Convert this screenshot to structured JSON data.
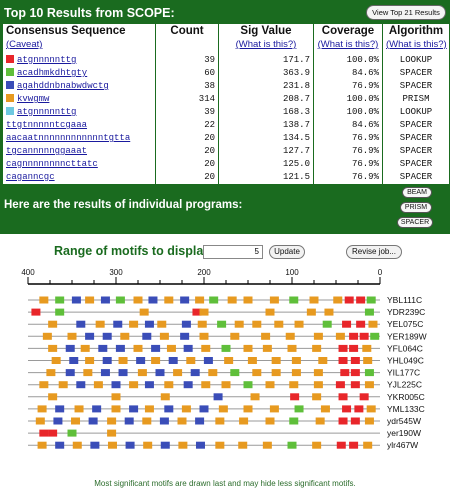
{
  "results": {
    "title": "Top 10 Results from SCOPE:",
    "top21_button": "View Top 21 Results",
    "headers": [
      "Consensus Sequence",
      "Count",
      "Sig Value",
      "Coverage",
      "Algorithm"
    ],
    "subheaders": [
      "(Caveat)",
      "",
      "(What is this?)",
      "(What is this?)",
      "(What is this?)"
    ],
    "rows": [
      {
        "seq": "atgnnnnnttg",
        "count": "39",
        "sig": "171.7",
        "coverage": "100.0%",
        "algorithm": "LOOKUP",
        "color": "#e8262a"
      },
      {
        "seq": "acadhmkdhtgty",
        "count": "60",
        "sig": "363.9",
        "coverage": "84.6%",
        "algorithm": "SPACER",
        "color": "#5fbf3a"
      },
      {
        "seq": "agahddnbnabwdwctg",
        "count": "38",
        "sig": "231.8",
        "coverage": "76.9%",
        "algorithm": "SPACER",
        "color": "#3a4db8"
      },
      {
        "seq": "kvwgmw",
        "count": "314",
        "sig": "208.7",
        "coverage": "100.0%",
        "algorithm": "PRISM",
        "color": "#e79a20"
      },
      {
        "seq": "atgnnnnnttg",
        "count": "39",
        "sig": "168.3",
        "coverage": "100.0%",
        "algorithm": "LOOKUP",
        "color": "#6ec9e0"
      },
      {
        "seq": "ttgtnnnnntcgaaa",
        "count": "22",
        "sig": "138.7",
        "coverage": "84.6%",
        "algorithm": "SPACER",
        "color": ""
      },
      {
        "seq": "aacaatnnnnnnnnnnnntgtta",
        "count": "20",
        "sig": "134.5",
        "coverage": "76.9%",
        "algorithm": "SPACER",
        "color": ""
      },
      {
        "seq": "tgcannnnnggaaat",
        "count": "20",
        "sig": "127.7",
        "coverage": "76.9%",
        "algorithm": "SPACER",
        "color": ""
      },
      {
        "seq": "cagnnnnnnnncttatc",
        "count": "20",
        "sig": "125.0",
        "coverage": "76.9%",
        "algorithm": "SPACER",
        "color": ""
      },
      {
        "seq": "caganncgc",
        "count": "20",
        "sig": "121.5",
        "coverage": "76.9%",
        "algorithm": "SPACER",
        "color": ""
      }
    ],
    "individual_label": "Here are the results of individual programs:",
    "program_buttons": [
      "BEAM",
      "PRISM",
      "SPACER"
    ]
  },
  "motifs": {
    "range_label": "Range of motifs to display:",
    "range_value": "5",
    "update_button": "Update",
    "revise_button": "Revise job...",
    "axis_ticks": [
      "400",
      "300",
      "200",
      "100",
      "0"
    ],
    "colors": {
      "red": "#e8262a",
      "green": "#5fbf3a",
      "blue": "#3a4db8",
      "orange": "#e79a20",
      "cyan": "#6ec9e0",
      "line": "#9a9a9a"
    },
    "genes": [
      {
        "name": "YBL111C",
        "motifs": [
          [
            382,
            "orange"
          ],
          [
            364,
            "green"
          ],
          [
            345,
            "blue"
          ],
          [
            330,
            "orange"
          ],
          [
            312,
            "blue"
          ],
          [
            295,
            "green"
          ],
          [
            275,
            "orange"
          ],
          [
            258,
            "blue"
          ],
          [
            240,
            "orange"
          ],
          [
            222,
            "blue"
          ],
          [
            205,
            "orange"
          ],
          [
            189,
            "green"
          ],
          [
            168,
            "orange"
          ],
          [
            150,
            "orange"
          ],
          [
            120,
            "orange"
          ],
          [
            98,
            "green"
          ],
          [
            75,
            "orange"
          ],
          [
            48,
            "orange"
          ],
          [
            35,
            "red"
          ],
          [
            22,
            "red"
          ],
          [
            10,
            "green"
          ]
        ]
      },
      {
        "name": "YDR239C",
        "motifs": [
          [
            391,
            "red"
          ],
          [
            364,
            "green"
          ],
          [
            268,
            "orange"
          ],
          [
            208,
            "red"
          ],
          [
            200,
            "orange"
          ],
          [
            125,
            "orange"
          ],
          [
            78,
            "orange"
          ],
          [
            58,
            "orange"
          ],
          [
            12,
            "green"
          ]
        ]
      },
      {
        "name": "YEL075C",
        "motifs": [
          [
            372,
            "orange"
          ],
          [
            340,
            "blue"
          ],
          [
            318,
            "orange"
          ],
          [
            298,
            "blue"
          ],
          [
            280,
            "orange"
          ],
          [
            262,
            "blue"
          ],
          [
            248,
            "orange"
          ],
          [
            220,
            "blue"
          ],
          [
            202,
            "orange"
          ],
          [
            180,
            "green"
          ],
          [
            160,
            "orange"
          ],
          [
            140,
            "orange"
          ],
          [
            115,
            "orange"
          ],
          [
            92,
            "orange"
          ],
          [
            60,
            "green"
          ],
          [
            38,
            "red"
          ],
          [
            22,
            "red"
          ],
          [
            8,
            "orange"
          ]
        ]
      },
      {
        "name": "YER189W",
        "motifs": [
          [
            378,
            "orange"
          ],
          [
            350,
            "orange"
          ],
          [
            330,
            "blue"
          ],
          [
            310,
            "blue"
          ],
          [
            290,
            "orange"
          ],
          [
            265,
            "blue"
          ],
          [
            245,
            "orange"
          ],
          [
            222,
            "blue"
          ],
          [
            200,
            "orange"
          ],
          [
            165,
            "orange"
          ],
          [
            130,
            "orange"
          ],
          [
            102,
            "orange"
          ],
          [
            70,
            "orange"
          ],
          [
            45,
            "orange"
          ],
          [
            30,
            "red"
          ],
          [
            18,
            "red"
          ],
          [
            6,
            "green"
          ]
        ]
      },
      {
        "name": "YFL064C",
        "motifs": [
          [
            372,
            "orange"
          ],
          [
            352,
            "blue"
          ],
          [
            335,
            "orange"
          ],
          [
            315,
            "blue"
          ],
          [
            295,
            "blue"
          ],
          [
            275,
            "orange"
          ],
          [
            255,
            "blue"
          ],
          [
            237,
            "orange"
          ],
          [
            218,
            "blue"
          ],
          [
            198,
            "orange"
          ],
          [
            175,
            "green"
          ],
          [
            150,
            "orange"
          ],
          [
            128,
            "orange"
          ],
          [
            100,
            "orange"
          ],
          [
            72,
            "orange"
          ],
          [
            42,
            "red"
          ],
          [
            30,
            "red"
          ],
          [
            15,
            "orange"
          ]
        ]
      },
      {
        "name": "YHL049C",
        "motifs": [
          [
            368,
            "orange"
          ],
          [
            348,
            "blue"
          ],
          [
            330,
            "orange"
          ],
          [
            310,
            "blue"
          ],
          [
            292,
            "orange"
          ],
          [
            272,
            "blue"
          ],
          [
            255,
            "orange"
          ],
          [
            235,
            "blue"
          ],
          [
            215,
            "orange"
          ],
          [
            195,
            "blue"
          ],
          [
            172,
            "orange"
          ],
          [
            145,
            "orange"
          ],
          [
            118,
            "orange"
          ],
          [
            95,
            "orange"
          ],
          [
            65,
            "orange"
          ],
          [
            42,
            "red"
          ],
          [
            28,
            "red"
          ],
          [
            14,
            "orange"
          ]
        ]
      },
      {
        "name": "YIL177C",
        "motifs": [
          [
            374,
            "orange"
          ],
          [
            352,
            "blue"
          ],
          [
            332,
            "orange"
          ],
          [
            312,
            "blue"
          ],
          [
            292,
            "blue"
          ],
          [
            270,
            "orange"
          ],
          [
            250,
            "blue"
          ],
          [
            230,
            "orange"
          ],
          [
            210,
            "blue"
          ],
          [
            190,
            "orange"
          ],
          [
            165,
            "green"
          ],
          [
            140,
            "orange"
          ],
          [
            118,
            "orange"
          ],
          [
            95,
            "orange"
          ],
          [
            70,
            "orange"
          ],
          [
            40,
            "red"
          ],
          [
            28,
            "red"
          ],
          [
            12,
            "green"
          ]
        ]
      },
      {
        "name": "YJL225C",
        "motifs": [
          [
            382,
            "orange"
          ],
          [
            360,
            "orange"
          ],
          [
            340,
            "blue"
          ],
          [
            320,
            "orange"
          ],
          [
            300,
            "blue"
          ],
          [
            280,
            "orange"
          ],
          [
            262,
            "blue"
          ],
          [
            240,
            "orange"
          ],
          [
            218,
            "blue"
          ],
          [
            198,
            "orange"
          ],
          [
            175,
            "orange"
          ],
          [
            150,
            "green"
          ],
          [
            125,
            "orange"
          ],
          [
            98,
            "orange"
          ],
          [
            70,
            "orange"
          ],
          [
            45,
            "red"
          ],
          [
            28,
            "red"
          ],
          [
            12,
            "orange"
          ]
        ]
      },
      {
        "name": "YKR005C",
        "motifs": [
          [
            372,
            "orange"
          ],
          [
            300,
            "orange"
          ],
          [
            244,
            "orange"
          ],
          [
            184,
            "blue"
          ],
          [
            142,
            "orange"
          ],
          [
            97,
            "red"
          ],
          [
            72,
            "orange"
          ],
          [
            42,
            "red"
          ],
          [
            18,
            "red"
          ]
        ]
      },
      {
        "name": "YML133C",
        "motifs": [
          [
            384,
            "orange"
          ],
          [
            364,
            "blue"
          ],
          [
            342,
            "orange"
          ],
          [
            322,
            "blue"
          ],
          [
            300,
            "orange"
          ],
          [
            280,
            "blue"
          ],
          [
            262,
            "orange"
          ],
          [
            240,
            "blue"
          ],
          [
            220,
            "orange"
          ],
          [
            200,
            "blue"
          ],
          [
            178,
            "orange"
          ],
          [
            150,
            "orange"
          ],
          [
            120,
            "orange"
          ],
          [
            92,
            "green"
          ],
          [
            62,
            "orange"
          ],
          [
            38,
            "red"
          ],
          [
            24,
            "red"
          ],
          [
            10,
            "orange"
          ]
        ]
      },
      {
        "name": "ydr545W",
        "motifs": [
          [
            386,
            "orange"
          ],
          [
            366,
            "blue"
          ],
          [
            346,
            "orange"
          ],
          [
            326,
            "blue"
          ],
          [
            305,
            "orange"
          ],
          [
            285,
            "blue"
          ],
          [
            265,
            "orange"
          ],
          [
            245,
            "blue"
          ],
          [
            225,
            "orange"
          ],
          [
            205,
            "blue"
          ],
          [
            182,
            "orange"
          ],
          [
            155,
            "orange"
          ],
          [
            125,
            "orange"
          ],
          [
            98,
            "green"
          ],
          [
            68,
            "orange"
          ],
          [
            42,
            "red"
          ],
          [
            28,
            "red"
          ],
          [
            12,
            "orange"
          ]
        ]
      },
      {
        "name": "yer190W",
        "motifs": [
          [
            382,
            "red"
          ],
          [
            372,
            "red"
          ],
          [
            350,
            "green"
          ],
          [
            305,
            "orange"
          ]
        ]
      },
      {
        "name": "ylr467W",
        "motifs": [
          [
            384,
            "orange"
          ],
          [
            364,
            "blue"
          ],
          [
            344,
            "orange"
          ],
          [
            324,
            "blue"
          ],
          [
            304,
            "orange"
          ],
          [
            284,
            "blue"
          ],
          [
            264,
            "orange"
          ],
          [
            244,
            "blue"
          ],
          [
            224,
            "orange"
          ],
          [
            204,
            "blue"
          ],
          [
            182,
            "orange"
          ],
          [
            156,
            "orange"
          ],
          [
            128,
            "orange"
          ],
          [
            100,
            "green"
          ],
          [
            72,
            "orange"
          ],
          [
            44,
            "red"
          ],
          [
            30,
            "red"
          ],
          [
            14,
            "orange"
          ]
        ]
      }
    ],
    "footnote": "Most significant motifs are drawn last and may hide less significant motifs."
  }
}
